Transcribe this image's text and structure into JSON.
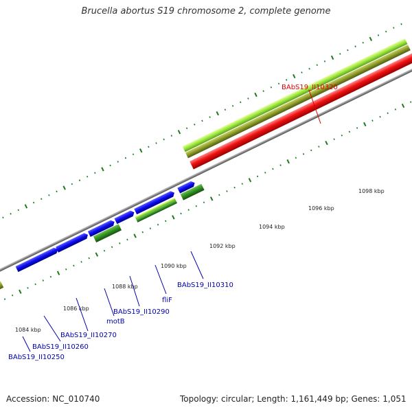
{
  "title": "Brucella abortus S19 chromosome 2, complete genome",
  "footer": {
    "accession": "Accession: NC_010740",
    "summary": "Topology: circular; Length: 1,161,449 bp; Genes: 1,051"
  },
  "colors": {
    "backbone": "#8a8a8a",
    "blue_gene": "#0a0aee",
    "red_gene": "#ee1111",
    "dark_green_gene": "#2f8f1f",
    "light_green_gene": "#9ae63c",
    "olive_gene": "#8a9a2a",
    "tick_green": "#1a7a1a",
    "label_blue": "#0000aa",
    "label_red": "#dd0000"
  },
  "tick_labels": [
    "1084 kbp",
    "1086 kbp",
    "1088 kbp",
    "1090 kbp",
    "1092 kbp",
    "1094 kbp",
    "1096 kbp",
    "1098 kbp"
  ],
  "gene_labels": [
    {
      "text": "BAbS19_II10250",
      "color": "blue"
    },
    {
      "text": "BAbS19_II10260",
      "color": "blue"
    },
    {
      "text": "BAbS19_II10270",
      "color": "blue"
    },
    {
      "text": "motB",
      "color": "blue"
    },
    {
      "text": "BAbS19_II10290",
      "color": "blue"
    },
    {
      "text": "fliF",
      "color": "blue"
    },
    {
      "text": "BAbS19_II10310",
      "color": "blue"
    },
    {
      "text": "BAbS19_II10320",
      "color": "red"
    }
  ]
}
